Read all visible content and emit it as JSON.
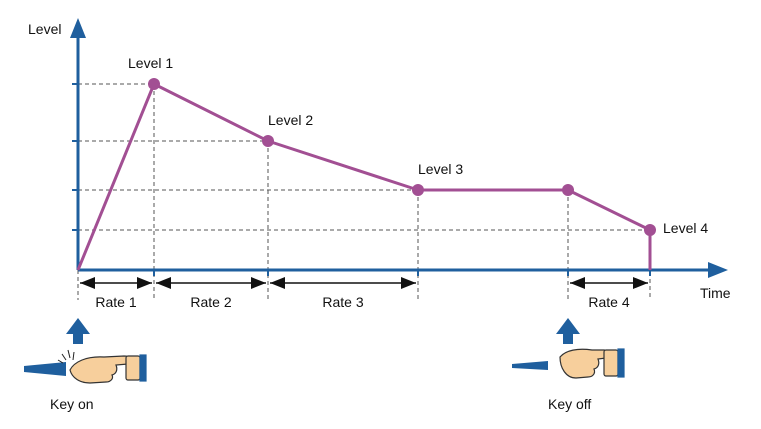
{
  "axes": {
    "y_label": "Level",
    "x_label": "Time"
  },
  "levels": {
    "level1": "Level 1",
    "level2": "Level 2",
    "level3": "Level 3",
    "level4": "Level 4"
  },
  "rates": {
    "rate1": "Rate 1",
    "rate2": "Rate 2",
    "rate3": "Rate 3",
    "rate4": "Rate 4"
  },
  "keys": {
    "key_on": "Key on",
    "key_off": "Key off"
  },
  "colors": {
    "axis": "#1f5f9e",
    "envelope": "#a24f93",
    "hand_fill": "#f7cf9c",
    "key_blue": "#1f5f9e"
  }
}
